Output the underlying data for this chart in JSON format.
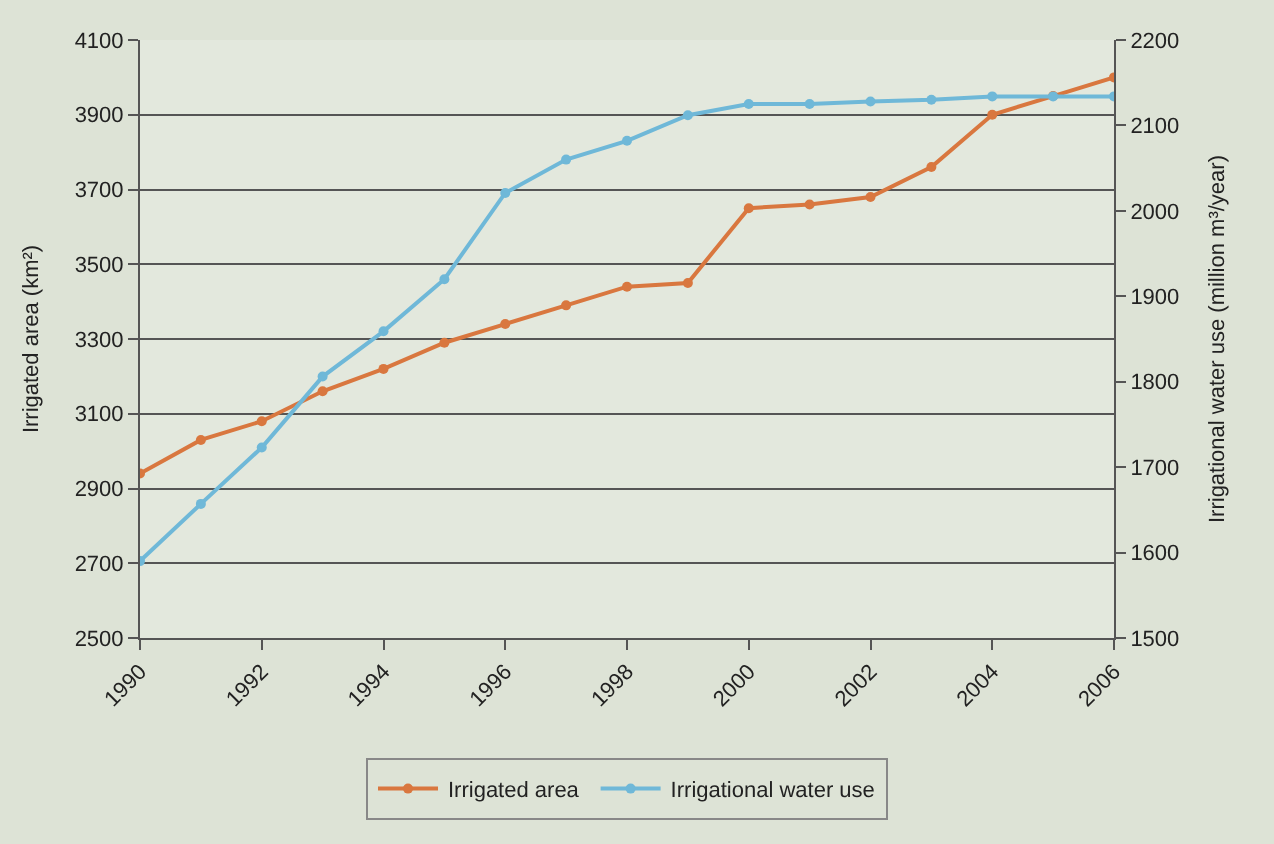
{
  "chart_data": {
    "type": "line",
    "ylabel": "Irrigated area (km²)",
    "y2label": "Irrigational water use (million m³/year)",
    "x": [
      1990,
      1991,
      1992,
      1993,
      1994,
      1995,
      1996,
      1997,
      1998,
      1999,
      2000,
      2001,
      2002,
      2003,
      2004,
      2005,
      2006
    ],
    "series": [
      {
        "name": "Irrigated area",
        "color": "#d9773f",
        "values": [
          2940,
          3030,
          3080,
          3160,
          3220,
          3290,
          3340,
          3390,
          3440,
          3450,
          3650,
          3660,
          3680,
          3760,
          3900,
          3950,
          4000
        ]
      },
      {
        "name": "Irrigational water use",
        "color": "#6fb8d8",
        "axis": "y2",
        "values": [
          1590,
          1657,
          1723,
          1806,
          1859,
          1920,
          2021,
          2060,
          2082,
          2112,
          2125,
          2125,
          2128,
          2130,
          2134,
          2134,
          2134
        ]
      }
    ],
    "xlim": [
      1990,
      2006
    ],
    "xticks": [
      1990,
      1992,
      1994,
      1996,
      1998,
      2000,
      2002,
      2004,
      2006
    ],
    "ylim": [
      2500,
      4100
    ],
    "yticks": [
      2500,
      2700,
      2900,
      3100,
      3300,
      3500,
      3700,
      3900,
      4100
    ],
    "y2lim": [
      1500,
      2200
    ],
    "y2ticks": [
      1500,
      1600,
      1700,
      1800,
      1900,
      2000,
      2100,
      2200
    ],
    "grid": "y",
    "legend": "bottom",
    "marker": "circle",
    "line_style": "solid"
  }
}
